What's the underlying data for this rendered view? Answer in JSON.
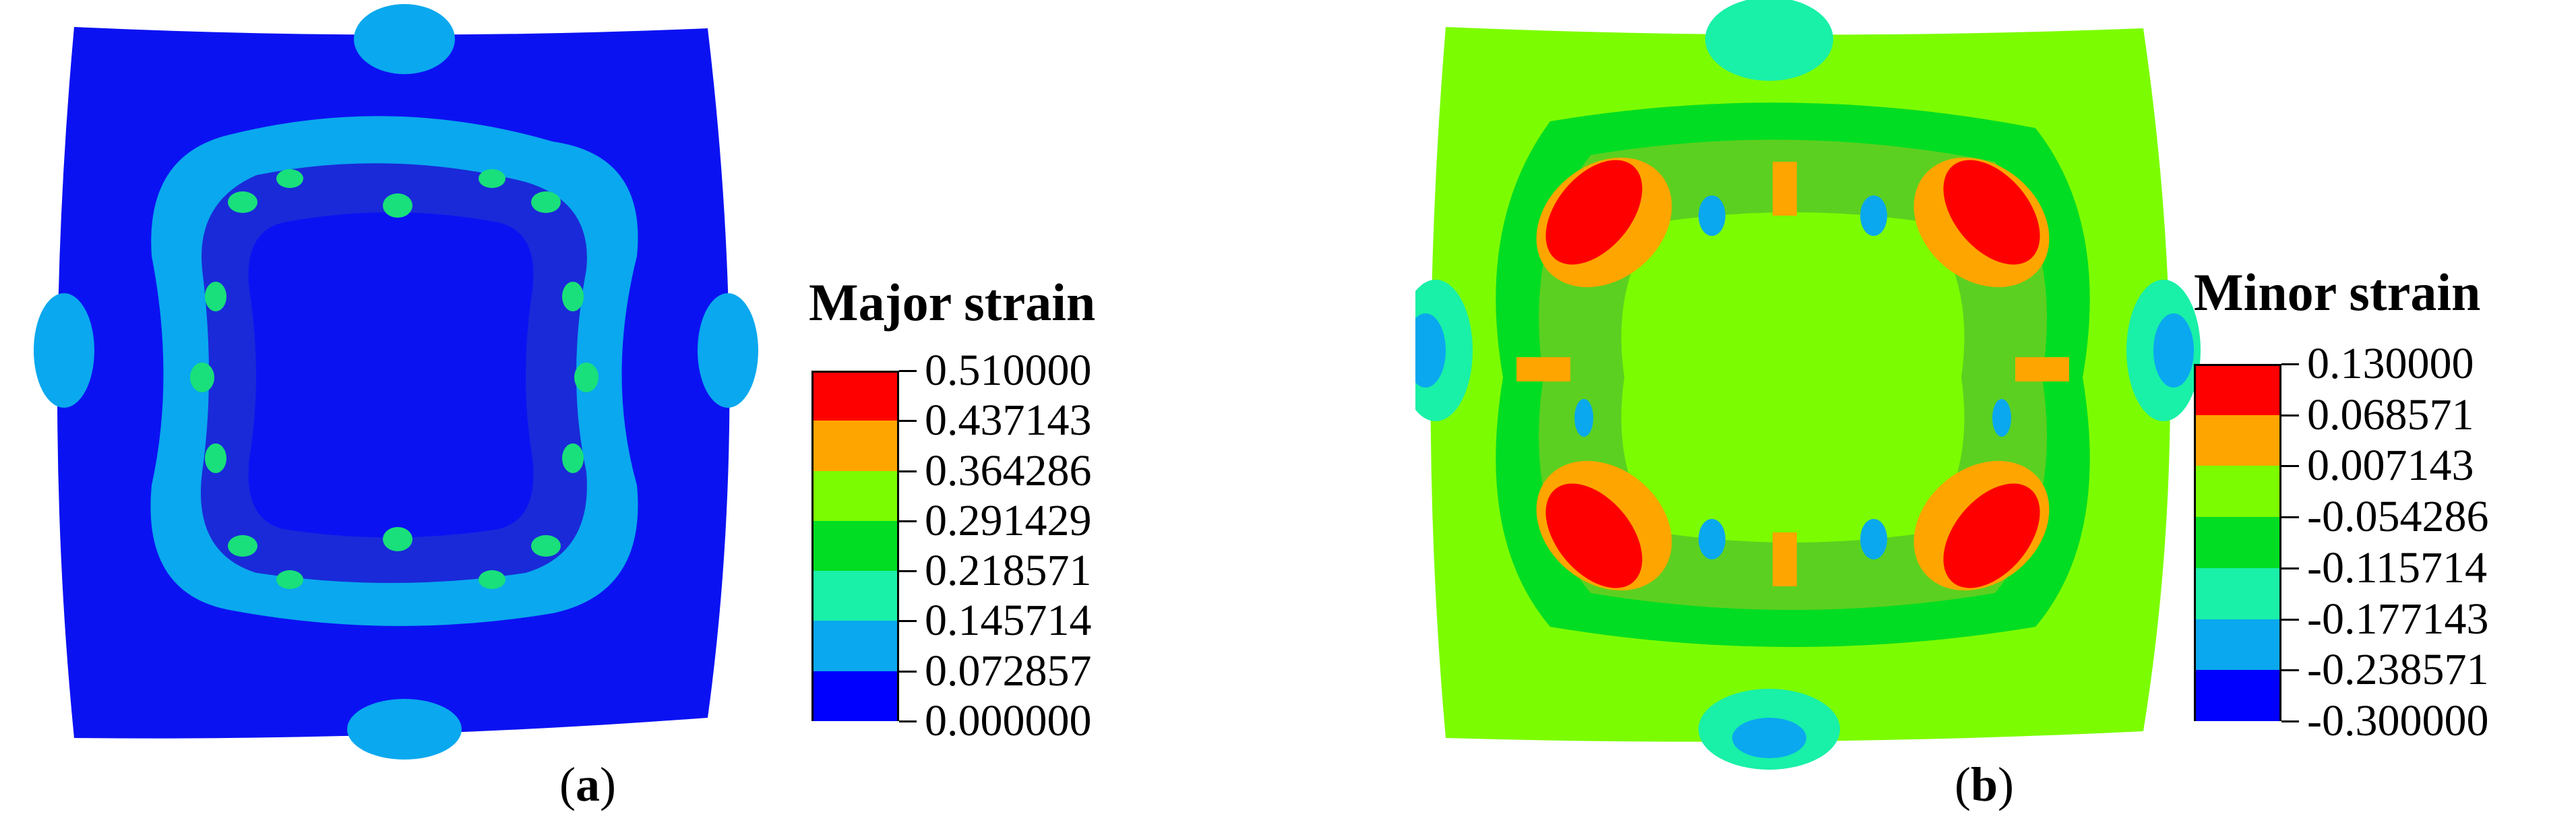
{
  "figures": [
    {
      "legend_title": "Major strain",
      "caption_letter": "a",
      "field_color": "#0b12f2",
      "scale": [
        {
          "label": "0.510000",
          "color": "#ff0000"
        },
        {
          "label": "0.437143",
          "color": "#ffa500"
        },
        {
          "label": "0.364286",
          "color": "#7cfc00"
        },
        {
          "label": "0.291429",
          "color": "#00dd22"
        },
        {
          "label": "0.218571",
          "color": "#19f0a8"
        },
        {
          "label": "0.145714",
          "color": "#0aa8ee"
        },
        {
          "label": "0.072857",
          "color": "#0000ff"
        },
        {
          "label": "0.000000",
          "color": null
        }
      ]
    },
    {
      "legend_title": "Minor strain",
      "caption_letter": "b",
      "field_color": "#7cfc00",
      "scale": [
        {
          "label": "0.130000",
          "color": "#ff0000"
        },
        {
          "label": "0.068571",
          "color": "#ffa500"
        },
        {
          "label": "0.007143",
          "color": "#7cfc00"
        },
        {
          "label": "-0.054286",
          "color": "#00dd22"
        },
        {
          "label": "-0.115714",
          "color": "#19f0a8"
        },
        {
          "label": "-0.177143",
          "color": "#0aa8ee"
        },
        {
          "label": "-0.238571",
          "color": "#0000ff"
        },
        {
          "label": "-0.300000",
          "color": null
        }
      ]
    }
  ]
}
